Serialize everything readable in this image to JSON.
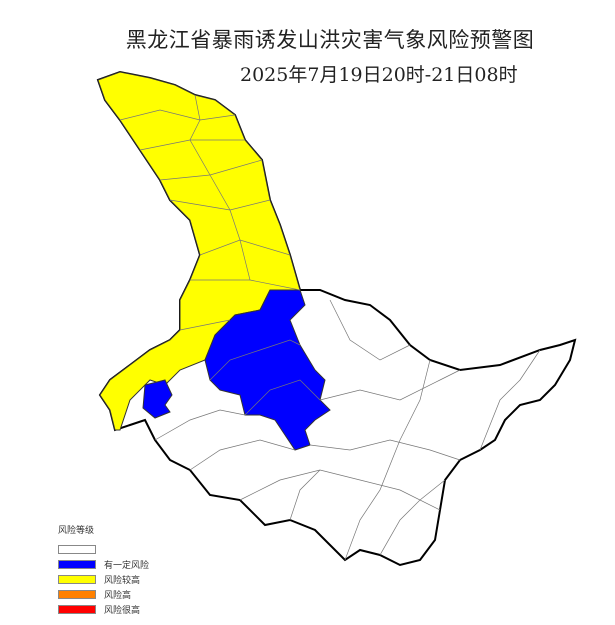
{
  "header": {
    "title": "黑龙江省暴雨诱发山洪灾害气象风险预警图",
    "subtitle": "2025年7月19日20时-21日08时"
  },
  "legend": {
    "title": "风险等级",
    "items": [
      {
        "label": "",
        "color": "#ffffff"
      },
      {
        "label": "有一定风险",
        "color": "#0000ff"
      },
      {
        "label": "风险较高",
        "color": "#ffff00"
      },
      {
        "label": "风险高",
        "color": "#ff8000"
      },
      {
        "label": "风险很高",
        "color": "#ff0000"
      }
    ]
  },
  "map": {
    "region": "Heilongjiang",
    "colors": {
      "no_risk": "#ffffff",
      "some_risk": "#0000ff",
      "higher_risk": "#ffff00",
      "border": "#000000",
      "county_lines": "#777777"
    }
  }
}
